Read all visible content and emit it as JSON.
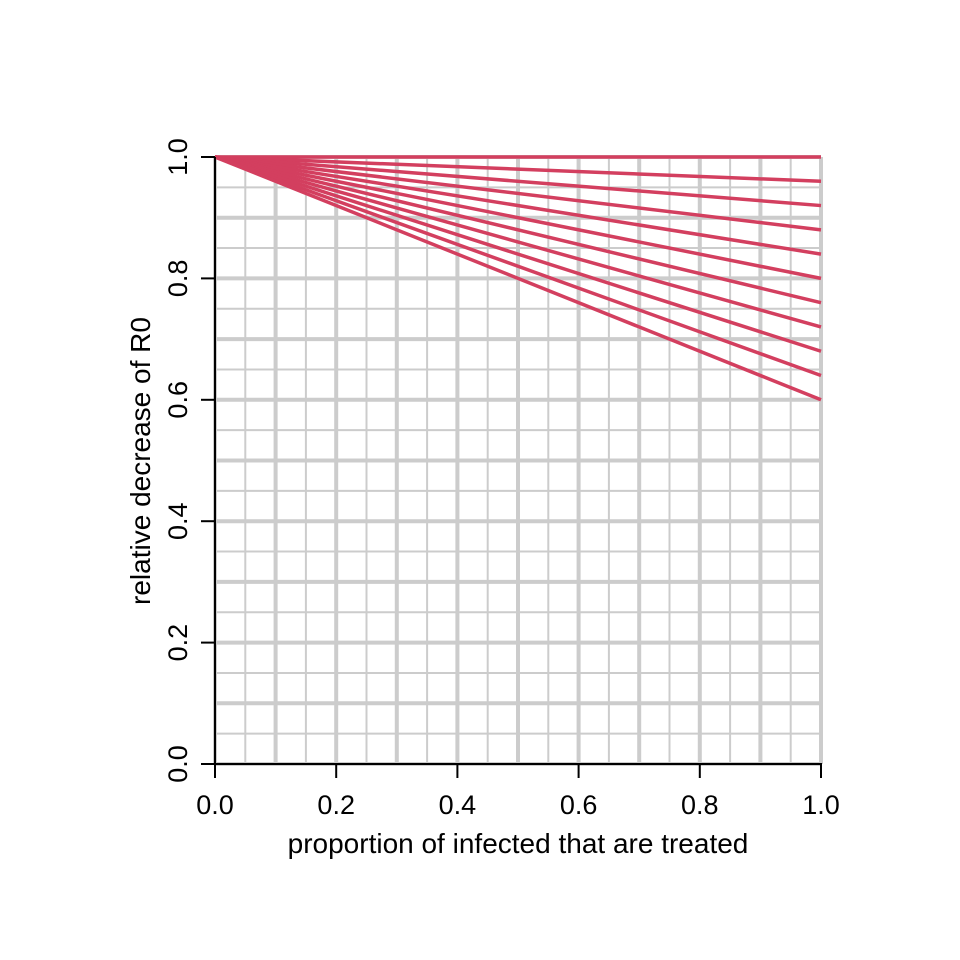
{
  "chart_data": {
    "type": "line",
    "title": "",
    "xlabel": "proportion of infected that are treated",
    "ylabel": "relative decrease of R0",
    "xlim": [
      0,
      1
    ],
    "ylim": [
      0,
      1
    ],
    "x_ticks": [
      "0.0",
      "0.2",
      "0.4",
      "0.6",
      "0.8",
      "1.0"
    ],
    "y_ticks": [
      "0.0",
      "0.2",
      "0.4",
      "0.6",
      "0.8",
      "1.0"
    ],
    "grid": true,
    "grid_major_step": 0.1,
    "grid_minor_step": 0.05,
    "legend": "none",
    "line_color": "#D33F5F",
    "grid_color": "#CCCCCC",
    "x": [
      0,
      1
    ],
    "series": [
      {
        "values": [
          1.0,
          1.0
        ]
      },
      {
        "values": [
          1.0,
          0.96
        ]
      },
      {
        "values": [
          1.0,
          0.92
        ]
      },
      {
        "values": [
          1.0,
          0.88
        ]
      },
      {
        "values": [
          1.0,
          0.84
        ]
      },
      {
        "values": [
          1.0,
          0.8
        ]
      },
      {
        "values": [
          1.0,
          0.76
        ]
      },
      {
        "values": [
          1.0,
          0.72
        ]
      },
      {
        "values": [
          1.0,
          0.68
        ]
      },
      {
        "values": [
          1.0,
          0.64
        ]
      },
      {
        "values": [
          1.0,
          0.6
        ]
      }
    ]
  }
}
